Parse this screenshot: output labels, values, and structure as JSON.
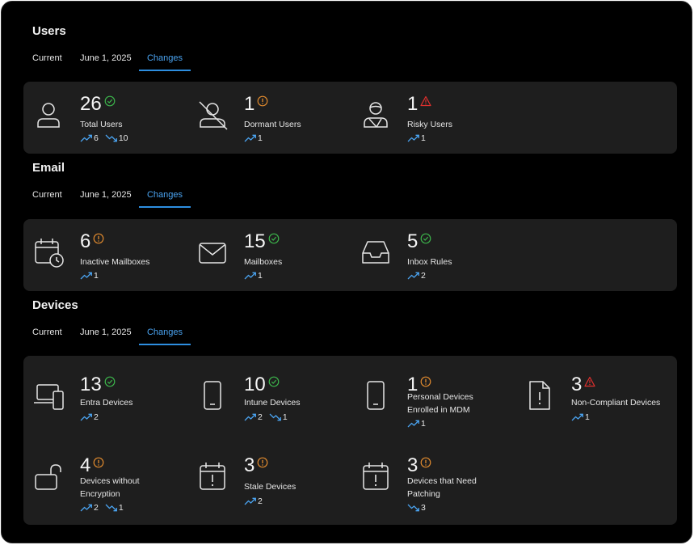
{
  "tabs": {
    "current": "Current",
    "date": "June 1, 2025",
    "changes": "Changes"
  },
  "colors": {
    "accent": "#2d8ee0",
    "ok": "#3cb44b",
    "warn": "#e08a2e",
    "danger": "#e0302e",
    "panel": "#1e1e1e"
  },
  "sections": {
    "users": {
      "title": "Users",
      "cards": [
        {
          "value": "26",
          "label": "Total Users",
          "status": "ok",
          "icon": "person-icon",
          "up": "6",
          "down": "10"
        },
        {
          "value": "1",
          "label": "Dormant Users",
          "status": "warn",
          "icon": "person-off-icon",
          "up": "1"
        },
        {
          "value": "1",
          "label": "Risky Users",
          "status": "danger",
          "icon": "risky-user-icon",
          "up": "1"
        }
      ]
    },
    "email": {
      "title": "Email",
      "cards": [
        {
          "value": "6",
          "label": "Inactive Mailboxes",
          "status": "warn",
          "icon": "calendar-clock-icon",
          "up": "1"
        },
        {
          "value": "15",
          "label": "Mailboxes",
          "status": "ok",
          "icon": "envelope-icon",
          "up": "1"
        },
        {
          "value": "5",
          "label": "Inbox Rules",
          "status": "ok",
          "icon": "inbox-tray-icon",
          "up": "2"
        }
      ]
    },
    "devices": {
      "title": "Devices",
      "cards": [
        {
          "value": "13",
          "label": "Entra Devices",
          "status": "ok",
          "icon": "laptop-phone-icon",
          "up": "2"
        },
        {
          "value": "10",
          "label": "Intune Devices",
          "status": "ok",
          "icon": "phone-icon",
          "up": "2",
          "down": "1"
        },
        {
          "value": "1",
          "label_line1": "Personal Devices",
          "label_line2": "Enrolled in MDM",
          "status": "warn",
          "icon": "phone-icon",
          "up": "1"
        },
        {
          "value": "3",
          "label": "Non-Compliant Devices",
          "status": "danger",
          "icon": "document-alert-icon",
          "up": "1"
        },
        {
          "value": "4",
          "label_line1": "Devices without",
          "label_line2": "Encryption",
          "status": "warn",
          "icon": "unlocked-icon",
          "up": "2",
          "down": "1"
        },
        {
          "value": "3",
          "label": "Stale Devices",
          "status": "warn",
          "icon": "calendar-alert-icon",
          "up": "2"
        },
        {
          "value": "3",
          "label_line1": "Devices that Need",
          "label_line2": "Patching",
          "status": "warn",
          "icon": "calendar-alert-icon",
          "down": "3"
        }
      ]
    }
  }
}
